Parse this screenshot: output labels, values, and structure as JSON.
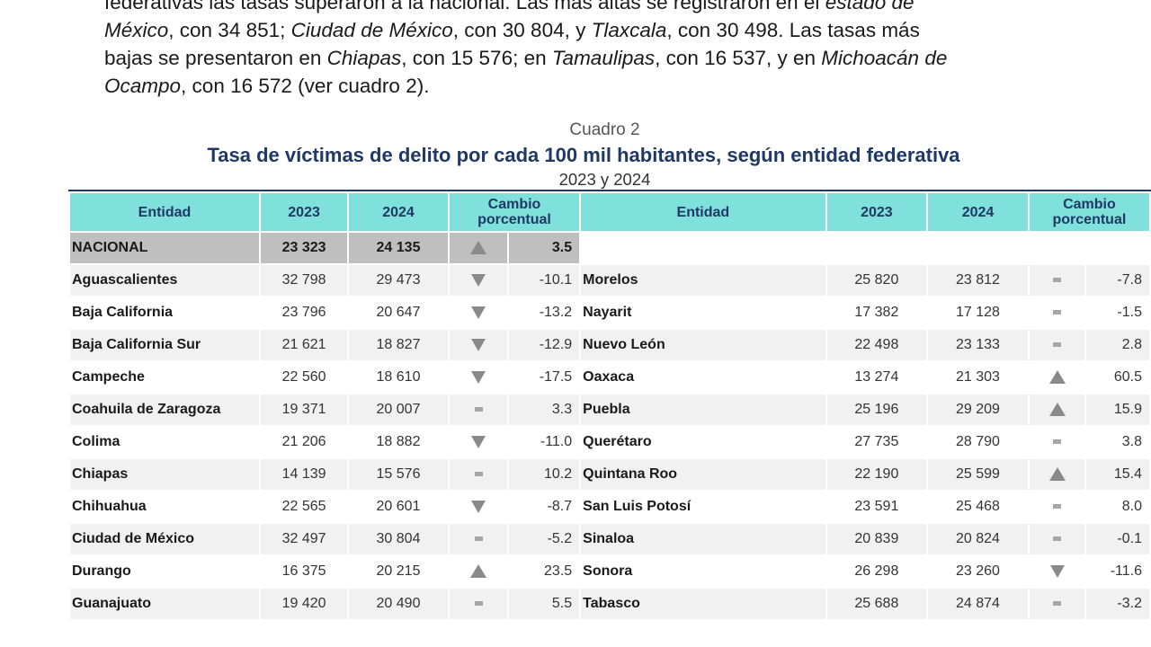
{
  "paragraph": {
    "line1": [
      {
        "t": "federativas las tasas superaron a la nacional. Las más altas se registraron en el ",
        "i": false
      },
      {
        "t": "estado de",
        "i": true
      }
    ],
    "line2": [
      {
        "t": "México",
        "i": true
      },
      {
        "t": ", con 34 851; ",
        "i": false
      },
      {
        "t": "Ciudad de México",
        "i": true
      },
      {
        "t": ", con 30 804, y ",
        "i": false
      },
      {
        "t": "Tlaxcala",
        "i": true
      },
      {
        "t": ", con 30 498. Las tasas más",
        "i": false
      }
    ],
    "line3": [
      {
        "t": "bajas se presentaron en ",
        "i": false
      },
      {
        "t": "Chiapas",
        "i": true
      },
      {
        "t": ", con 15 576; en ",
        "i": false
      },
      {
        "t": "Tamaulipas",
        "i": true
      },
      {
        "t": ", con 16 537, y en ",
        "i": false
      },
      {
        "t": "Michoacán de",
        "i": true
      }
    ],
    "line4": [
      {
        "t": "Ocampo",
        "i": true
      },
      {
        "t": ", con 16 572 (ver cuadro 2).",
        "i": false
      }
    ]
  },
  "caption": {
    "number": "Cuadro 2",
    "title": "Tasa de víctimas de delito por cada 100 mil habitantes, según entidad federativa",
    "years": "2023 y 2024"
  },
  "headers": {
    "entity": "Entidad",
    "y2023": "2023",
    "y2024": "2024",
    "change_l1": "Cambio",
    "change_l2": "porcentual"
  },
  "national": {
    "name": "NACIONAL",
    "v2023": "23 323",
    "v2024": "24 135",
    "trend": "up",
    "change": "3.5"
  },
  "left_rows": [
    {
      "name": "Aguascalientes",
      "v2023": "32 798",
      "v2024": "29 473",
      "trend": "down",
      "change": "-10.1"
    },
    {
      "name": "Baja California",
      "v2023": "23 796",
      "v2024": "20 647",
      "trend": "down",
      "change": "-13.2"
    },
    {
      "name": "Baja California Sur",
      "v2023": "21 621",
      "v2024": "18 827",
      "trend": "down",
      "change": "-12.9"
    },
    {
      "name": "Campeche",
      "v2023": "22 560",
      "v2024": "18 610",
      "trend": "down",
      "change": "-17.5"
    },
    {
      "name": "Coahuila de Zaragoza",
      "v2023": "19 371",
      "v2024": "20 007",
      "trend": "same",
      "change": "3.3"
    },
    {
      "name": "Colima",
      "v2023": "21 206",
      "v2024": "18 882",
      "trend": "down",
      "change": "-11.0"
    },
    {
      "name": "Chiapas",
      "v2023": "14 139",
      "v2024": "15 576",
      "trend": "same",
      "change": "10.2"
    },
    {
      "name": "Chihuahua",
      "v2023": "22 565",
      "v2024": "20 601",
      "trend": "down",
      "change": "-8.7"
    },
    {
      "name": "Ciudad de México",
      "v2023": "32 497",
      "v2024": "30 804",
      "trend": "same",
      "change": "-5.2"
    },
    {
      "name": "Durango",
      "v2023": "16 375",
      "v2024": "20 215",
      "trend": "up",
      "change": "23.5"
    },
    {
      "name": "Guanajuato",
      "v2023": "19 420",
      "v2024": "20 490",
      "trend": "same",
      "change": "5.5"
    }
  ],
  "right_rows": [
    {
      "name": "Morelos",
      "v2023": "25 820",
      "v2024": "23 812",
      "trend": "same",
      "change": "-7.8"
    },
    {
      "name": "Nayarit",
      "v2023": "17 382",
      "v2024": "17 128",
      "trend": "same",
      "change": "-1.5"
    },
    {
      "name": "Nuevo León",
      "v2023": "22 498",
      "v2024": "23 133",
      "trend": "same",
      "change": "2.8"
    },
    {
      "name": "Oaxaca",
      "v2023": "13 274",
      "v2024": "21 303",
      "trend": "up",
      "change": "60.5"
    },
    {
      "name": "Puebla",
      "v2023": "25 196",
      "v2024": "29 209",
      "trend": "up",
      "change": "15.9"
    },
    {
      "name": "Querétaro",
      "v2023": "27 735",
      "v2024": "28 790",
      "trend": "same",
      "change": "3.8"
    },
    {
      "name": "Quintana Roo",
      "v2023": "22 190",
      "v2024": "25 599",
      "trend": "up",
      "change": "15.4"
    },
    {
      "name": "San Luis Potosí",
      "v2023": "23 591",
      "v2024": "25 468",
      "trend": "same",
      "change": "8.0"
    },
    {
      "name": "Sinaloa",
      "v2023": "20 839",
      "v2024": "20 824",
      "trend": "same",
      "change": "-0.1"
    },
    {
      "name": "Sonora",
      "v2023": "26 298",
      "v2024": "23 260",
      "trend": "down",
      "change": "-11.6"
    },
    {
      "name": "Tabasco",
      "v2023": "25 688",
      "v2024": "24 874",
      "trend": "same",
      "change": "-3.2"
    }
  ]
}
